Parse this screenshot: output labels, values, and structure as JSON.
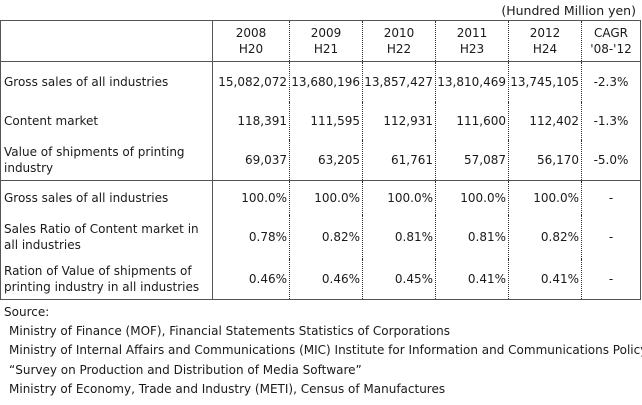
{
  "unit_note": "(Hundred Million yen)",
  "header": {
    "columns": [
      {
        "year": "2008",
        "era": "H20"
      },
      {
        "year": "2009",
        "era": "H21"
      },
      {
        "year": "2010",
        "era": "H22"
      },
      {
        "year": "2011",
        "era": "H23"
      },
      {
        "year": "2012",
        "era": "H24"
      }
    ],
    "cagr_line1": "CAGR",
    "cagr_line2": "'08-'12"
  },
  "rows": [
    {
      "label": "Gross sales of all industries",
      "values": [
        "15,082,072",
        "13,680,196",
        "13,857,427",
        "13,810,469",
        "13,745,105"
      ],
      "cagr": "-2.3%"
    },
    {
      "label": "Content market",
      "values": [
        "118,391",
        "111,595",
        "112,931",
        "111,600",
        "112,402"
      ],
      "cagr": "-1.3%"
    },
    {
      "label": "Value of shipments of printing industry",
      "values": [
        "69,037",
        "63,205",
        "61,761",
        "57,087",
        "56,170"
      ],
      "cagr": "-5.0%"
    },
    {
      "label": "Gross sales of all industries",
      "values": [
        "100.0%",
        "100.0%",
        "100.0%",
        "100.0%",
        "100.0%"
      ],
      "cagr": "-"
    },
    {
      "label": "Sales Ratio of Content market in all industries",
      "values": [
        "0.78%",
        "0.82%",
        "0.81%",
        "0.81%",
        "0.82%"
      ],
      "cagr": "-"
    },
    {
      "label": "Ration of Value of shipments of printing industry in all industries",
      "values": [
        "0.46%",
        "0.46%",
        "0.45%",
        "0.41%",
        "0.41%"
      ],
      "cagr": "-"
    }
  ],
  "source": {
    "heading": "Source:",
    "lines": [
      "Ministry of Finance (MOF), Financial Statements Statistics of Corporations",
      "Ministry of Internal Affairs and Communications (MIC)  Institute for Information and Communications Policy",
      "“Survey on Production and Distribution of Media Software”",
      "Ministry of Economy, Trade and Industry (METI), Census of Manufactures"
    ]
  }
}
